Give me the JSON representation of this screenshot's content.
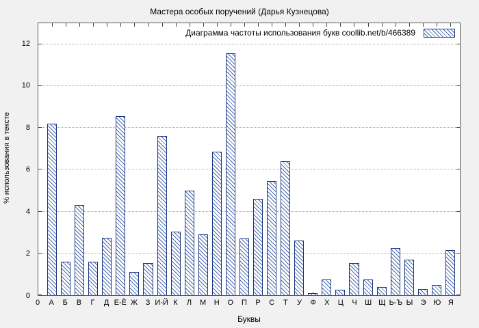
{
  "title": "Мастера особых поручений (Дарья Кузнецова)",
  "legend": {
    "label": "Диаграмма частоты использования букв  coollib.net/b/466389"
  },
  "axes": {
    "ylabel": "% использования в тексте",
    "xlabel": "Буквы",
    "origin_label": "0",
    "yticks": [
      0,
      2,
      4,
      6,
      8,
      10,
      12
    ]
  },
  "chart_data": {
    "type": "bar",
    "title": "Мастера особых поручений (Дарья Кузнецова)",
    "xlabel": "Буквы",
    "ylabel": "% использования в тексте",
    "ylim": [
      0,
      13
    ],
    "grid": true,
    "legend_position": "top-right",
    "legend_label": "Диаграмма частоты использования букв  coollib.net/b/466389",
    "categories": [
      "А",
      "Б",
      "В",
      "Г",
      "Д",
      "Е-Ё",
      "Ж",
      "З",
      "И-Й",
      "К",
      "Л",
      "М",
      "Н",
      "О",
      "П",
      "Р",
      "С",
      "Т",
      "У",
      "Ф",
      "Х",
      "Ц",
      "Ч",
      "Ш",
      "Щ",
      "Ь-Ъ",
      "Ы",
      "Э",
      "Ю",
      "Я"
    ],
    "values": [
      8.2,
      1.6,
      4.3,
      1.6,
      2.75,
      8.55,
      1.1,
      1.55,
      7.6,
      3.05,
      5.0,
      2.9,
      6.85,
      11.55,
      2.7,
      4.6,
      5.45,
      6.4,
      2.6,
      0.1,
      0.75,
      0.25,
      1.55,
      0.75,
      0.4,
      2.25,
      1.7,
      0.3,
      0.5,
      2.15
    ],
    "colors": {
      "bar_border": "#17377e",
      "bar_hatch": "#4a66ad",
      "figure_background": "#f1f1f1",
      "plot_background": "#ffffff",
      "grid_color": "#a8a8a8"
    }
  }
}
